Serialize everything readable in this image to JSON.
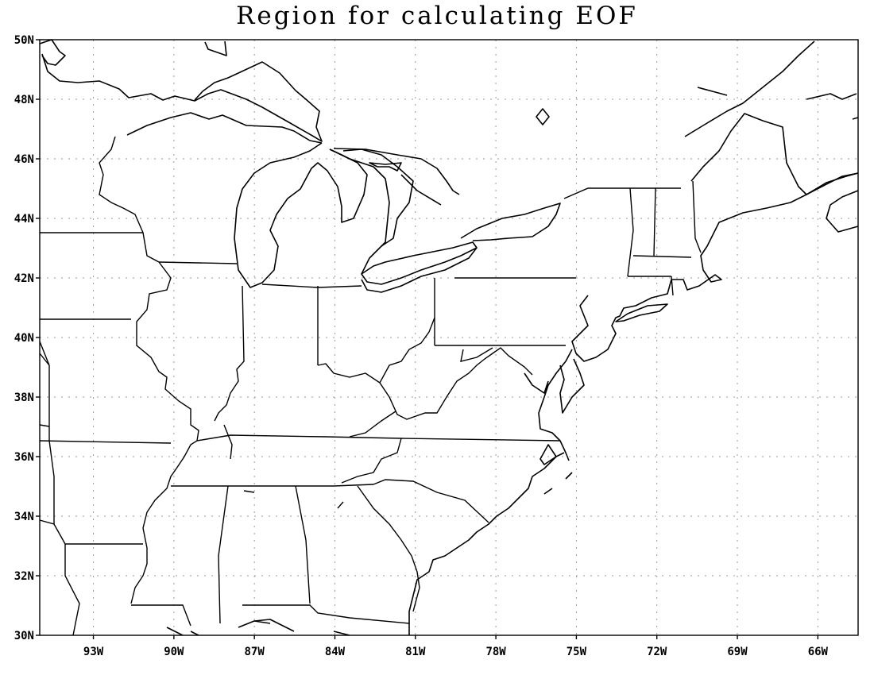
{
  "title": "Region for calculating EOF",
  "map": {
    "projection": "cylindrical-equidistant",
    "lon_range": [
      -95,
      -64.5
    ],
    "lat_range": [
      30,
      50
    ],
    "grid": true,
    "lat_ticks": [
      {
        "value": 30,
        "label": "30N"
      },
      {
        "value": 32,
        "label": "32N"
      },
      {
        "value": 34,
        "label": "34N"
      },
      {
        "value": 36,
        "label": "36N"
      },
      {
        "value": 38,
        "label": "38N"
      },
      {
        "value": 40,
        "label": "40N"
      },
      {
        "value": 42,
        "label": "42N"
      },
      {
        "value": 44,
        "label": "44N"
      },
      {
        "value": 46,
        "label": "46N"
      },
      {
        "value": 48,
        "label": "48N"
      },
      {
        "value": 50,
        "label": "50N"
      }
    ],
    "lon_ticks": [
      {
        "value": -93,
        "label": "93W"
      },
      {
        "value": -90,
        "label": "90W"
      },
      {
        "value": -87,
        "label": "87W"
      },
      {
        "value": -84,
        "label": "84W"
      },
      {
        "value": -81,
        "label": "81W"
      },
      {
        "value": -78,
        "label": "78W"
      },
      {
        "value": -75,
        "label": "75W"
      },
      {
        "value": -72,
        "label": "72W"
      },
      {
        "value": -69,
        "label": "69W"
      },
      {
        "value": -66,
        "label": "66W"
      }
    ]
  }
}
